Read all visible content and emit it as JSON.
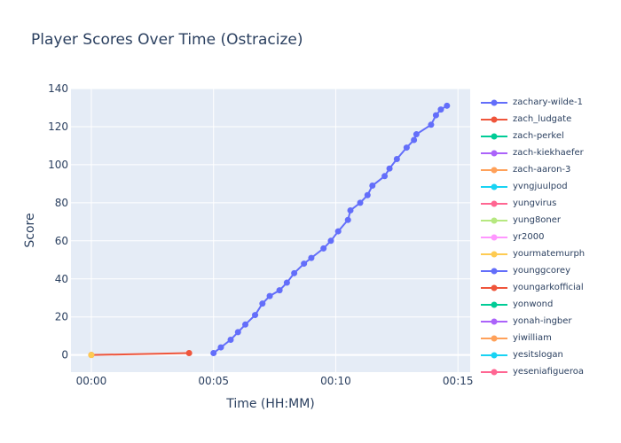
{
  "chart_data": {
    "type": "line",
    "title": "Player Scores Over Time (Ostracize)",
    "xlabel": "Time (HH:MM)",
    "ylabel": "Score",
    "xlim": [
      "-00:00:50",
      "00:15:30"
    ],
    "ylim": [
      -9,
      140
    ],
    "x_ticks": [
      "00:00",
      "00:05",
      "00:10",
      "00:15"
    ],
    "y_ticks": [
      0,
      20,
      40,
      60,
      80,
      100,
      120,
      140
    ],
    "grid": true,
    "legend_position": "right",
    "series": [
      {
        "name": "zachary-wilde-1",
        "color": "#636efa",
        "x": [
          "00:05:00",
          "00:05:18",
          "00:05:42",
          "00:06:00",
          "00:06:18",
          "00:06:42",
          "00:07:00",
          "00:07:18",
          "00:07:42",
          "00:08:00",
          "00:08:18",
          "00:08:42",
          "00:09:00",
          "00:09:30",
          "00:09:48",
          "00:10:06",
          "00:10:30",
          "00:10:36",
          "00:11:00",
          "00:11:18",
          "00:11:30",
          "00:12:00",
          "00:12:12",
          "00:12:30",
          "00:12:54",
          "00:13:12",
          "00:13:18",
          "00:13:54",
          "00:14:06",
          "00:14:18",
          "00:14:33"
        ],
        "y": [
          1,
          4,
          8,
          12,
          16,
          21,
          27,
          31,
          34,
          38,
          43,
          48,
          51,
          56,
          60,
          65,
          71,
          76,
          80,
          84,
          89,
          94,
          98,
          103,
          109,
          113,
          116,
          121,
          126,
          129,
          131
        ]
      },
      {
        "name": "zach_ludgate",
        "color": "#ef553b",
        "x": [
          "00:00:00",
          "00:04:00"
        ],
        "y": [
          0,
          1
        ]
      },
      {
        "name": "zach-perkel",
        "color": "#00cc96",
        "x": [],
        "y": []
      },
      {
        "name": "zach-kiekhaefer",
        "color": "#ab63fa",
        "x": [],
        "y": []
      },
      {
        "name": "zach-aaron-3",
        "color": "#ffa15a",
        "x": [],
        "y": []
      },
      {
        "name": "yvngjuulpod",
        "color": "#19d3f3",
        "x": [],
        "y": []
      },
      {
        "name": "yungvirus",
        "color": "#ff6692",
        "x": [],
        "y": []
      },
      {
        "name": "yung8oner",
        "color": "#b6e880",
        "x": [],
        "y": []
      },
      {
        "name": "yr2000",
        "color": "#ff97ff",
        "x": [],
        "y": []
      },
      {
        "name": "yourmatemurph",
        "color": "#fecb52",
        "x": [
          "00:00:00"
        ],
        "y": [
          0
        ]
      },
      {
        "name": "younggcorey",
        "color": "#636efa",
        "x": [],
        "y": []
      },
      {
        "name": "youngarkofficial",
        "color": "#ef553b",
        "x": [],
        "y": []
      },
      {
        "name": "yonwond",
        "color": "#00cc96",
        "x": [],
        "y": []
      },
      {
        "name": "yonah-ingber",
        "color": "#ab63fa",
        "x": [],
        "y": []
      },
      {
        "name": "yiwilliam",
        "color": "#ffa15a",
        "x": [],
        "y": []
      },
      {
        "name": "yesitslogan",
        "color": "#19d3f3",
        "x": [],
        "y": []
      },
      {
        "name": "yeseniafigueroa",
        "color": "#ff6692",
        "x": [],
        "y": []
      }
    ]
  }
}
